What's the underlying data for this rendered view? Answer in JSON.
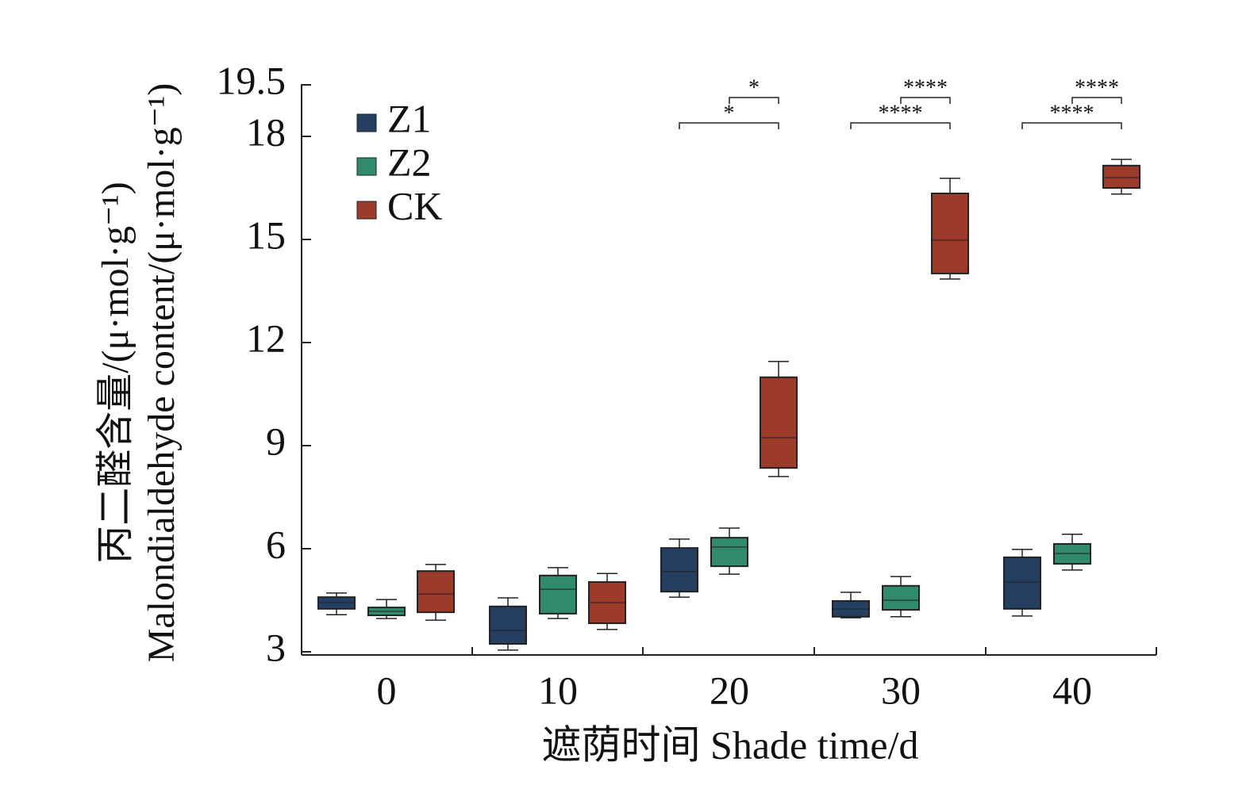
{
  "chart_data": {
    "type": "box",
    "categories": [
      "0",
      "10",
      "20",
      "30",
      "40"
    ],
    "xlabel": "遮荫时间 Shade time/d",
    "ylabel": [
      "丙二醛含量/(μ·mol·g⁻¹)",
      "Malondialdehyde content/(μ·mol·g⁻¹)"
    ],
    "ylim": [
      3,
      19.5
    ],
    "yticks": [
      3,
      6,
      9,
      12,
      15,
      18,
      19.5
    ],
    "series": [
      {
        "name": "Z1",
        "color": "#243f62",
        "values": [
          [
            4.08,
            4.25,
            4.43,
            4.59,
            4.71
          ],
          [
            3.05,
            3.23,
            3.62,
            4.32,
            4.57
          ],
          [
            4.59,
            4.75,
            5.33,
            6.02,
            6.28
          ],
          [
            3.99,
            4.02,
            4.25,
            4.48,
            4.73
          ],
          [
            4.04,
            4.25,
            5.03,
            5.75,
            5.98
          ]
        ]
      },
      {
        "name": "Z2",
        "color": "#2f8a6e",
        "values": [
          [
            3.97,
            4.06,
            4.18,
            4.29,
            4.52
          ],
          [
            3.97,
            4.11,
            4.82,
            5.22,
            5.45
          ],
          [
            5.26,
            5.49,
            6.05,
            6.32,
            6.6
          ],
          [
            4.02,
            4.22,
            4.5,
            4.92,
            5.19
          ],
          [
            5.38,
            5.56,
            5.86,
            6.14,
            6.42
          ]
        ]
      },
      {
        "name": "CK",
        "color": "#9c3a2c",
        "values": [
          [
            3.92,
            4.15,
            4.68,
            5.35,
            5.54
          ],
          [
            3.65,
            3.83,
            4.43,
            5.03,
            5.28
          ],
          [
            8.1,
            8.35,
            9.23,
            10.99,
            11.45
          ],
          [
            13.85,
            14.01,
            14.98,
            16.34,
            16.78
          ],
          [
            16.32,
            16.5,
            16.8,
            17.15,
            17.33
          ]
        ]
      }
    ],
    "annotations": [
      {
        "category": 2,
        "pair": [
          0,
          2
        ],
        "text": "*"
      },
      {
        "category": 2,
        "pair": [
          1,
          2
        ],
        "text": "*"
      },
      {
        "category": 3,
        "pair": [
          0,
          2
        ],
        "text": "****"
      },
      {
        "category": 3,
        "pair": [
          1,
          2
        ],
        "text": "****"
      },
      {
        "category": 4,
        "pair": [
          0,
          2
        ],
        "text": "****"
      },
      {
        "category": 4,
        "pair": [
          1,
          2
        ],
        "text": "****"
      }
    ]
  }
}
